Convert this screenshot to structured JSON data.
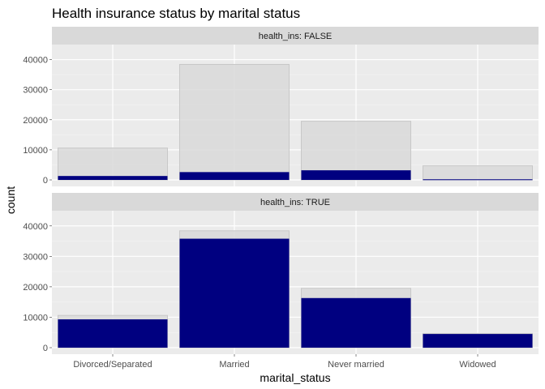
{
  "chart_data": {
    "type": "bar",
    "title": "Health insurance status by marital status",
    "xlabel": "marital_status",
    "ylabel": "count",
    "categories": [
      "Divorced/Separated",
      "Married",
      "Never married",
      "Widowed"
    ],
    "ylim": [
      0,
      45000
    ],
    "yticks": [
      0,
      10000,
      20000,
      30000,
      40000
    ],
    "grid": true,
    "colors": {
      "panel_bg": "#ebebeb",
      "grid_major": "#ffffff",
      "grid_minor": "#f4f4f4",
      "strip_bg": "#d9d9d9",
      "total_fill": "#d9d9d9",
      "total_stroke": "#c8c8c8",
      "highlight_fill": "#000080"
    },
    "facets": [
      {
        "label": "health_ins: FALSE",
        "totals": [
          10600,
          38400,
          19500,
          4700
        ],
        "values": [
          1300,
          2600,
          3200,
          200
        ]
      },
      {
        "label": "health_ins: TRUE",
        "totals": [
          10600,
          38400,
          19500,
          4700
        ],
        "values": [
          9300,
          35800,
          16300,
          4500
        ]
      }
    ]
  }
}
